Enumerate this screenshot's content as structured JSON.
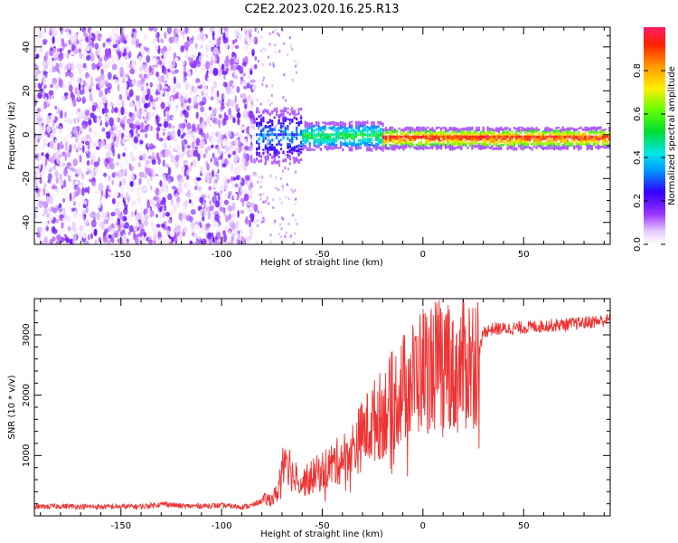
{
  "title": "C2E2.2023.020.16.25.R13",
  "chart_data": [
    {
      "type": "heatmap",
      "xlabel": "Height of straight line (km)",
      "ylabel": "Frequency (Hz)",
      "xlim": [
        -193,
        93
      ],
      "ylim": [
        -50,
        49
      ],
      "xticks": [
        -150,
        -100,
        -50,
        0,
        50
      ],
      "yticks": [
        -40,
        -20,
        0,
        20,
        40
      ],
      "grid": false,
      "colorbar": {
        "label": "Normalized spectral amplitude",
        "range": [
          0,
          1
        ],
        "ticks": [
          0.0,
          0.2,
          0.4,
          0.6,
          0.8
        ]
      },
      "regions": [
        {
          "x_range": [
            -193,
            -83
          ],
          "frequency_range": [
            -50,
            49
          ],
          "amplitude_range": [
            0.0,
            0.2
          ]
        },
        {
          "x_range": [
            -83,
            -60
          ],
          "frequency_center": 0,
          "frequency_halfwidth": 8,
          "amplitude_range": [
            0.1,
            0.4
          ]
        },
        {
          "x_range": [
            -60,
            -20
          ],
          "frequency_center": 0,
          "frequency_halfwidth": 4,
          "amplitude_range": [
            0.2,
            0.6
          ]
        },
        {
          "x_range": [
            -20,
            93
          ],
          "frequency_center": -1,
          "frequency_halfwidth": 3,
          "amplitude_range": [
            0.4,
            1.0
          ]
        }
      ]
    },
    {
      "type": "line",
      "xlabel": "Height of straight line (km)",
      "ylabel": "SNR (10 * v/v)",
      "xlim": [
        -193,
        93
      ],
      "ylim": [
        0,
        3600
      ],
      "xticks": [
        -150,
        -100,
        -50,
        0,
        50
      ],
      "yticks": [
        1000,
        2000,
        3000
      ],
      "grid": false,
      "series": [
        {
          "color": "#ee3333",
          "x": [
            -193,
            -180,
            -160,
            -140,
            -128,
            -120,
            -100,
            -90,
            -85,
            -80,
            -75,
            -72,
            -70,
            -68,
            -65,
            -62,
            -60,
            -55,
            -50,
            -45,
            -40,
            -35,
            -30,
            -25,
            -20,
            -15,
            -10,
            -5,
            0,
            5,
            10,
            13,
            15,
            20,
            25,
            28,
            30,
            35,
            40,
            50,
            60,
            70,
            80,
            93
          ],
          "y": [
            150,
            160,
            150,
            155,
            200,
            160,
            170,
            150,
            170,
            250,
            280,
            400,
            900,
            1050,
            700,
            600,
            550,
            650,
            750,
            850,
            950,
            1100,
            1350,
            1550,
            1700,
            1900,
            2100,
            2250,
            2450,
            2500,
            2500,
            2650,
            2300,
            2500,
            2600,
            2700,
            3050,
            3100,
            3100,
            3120,
            3150,
            3170,
            3200,
            3250
          ]
        }
      ]
    }
  ]
}
